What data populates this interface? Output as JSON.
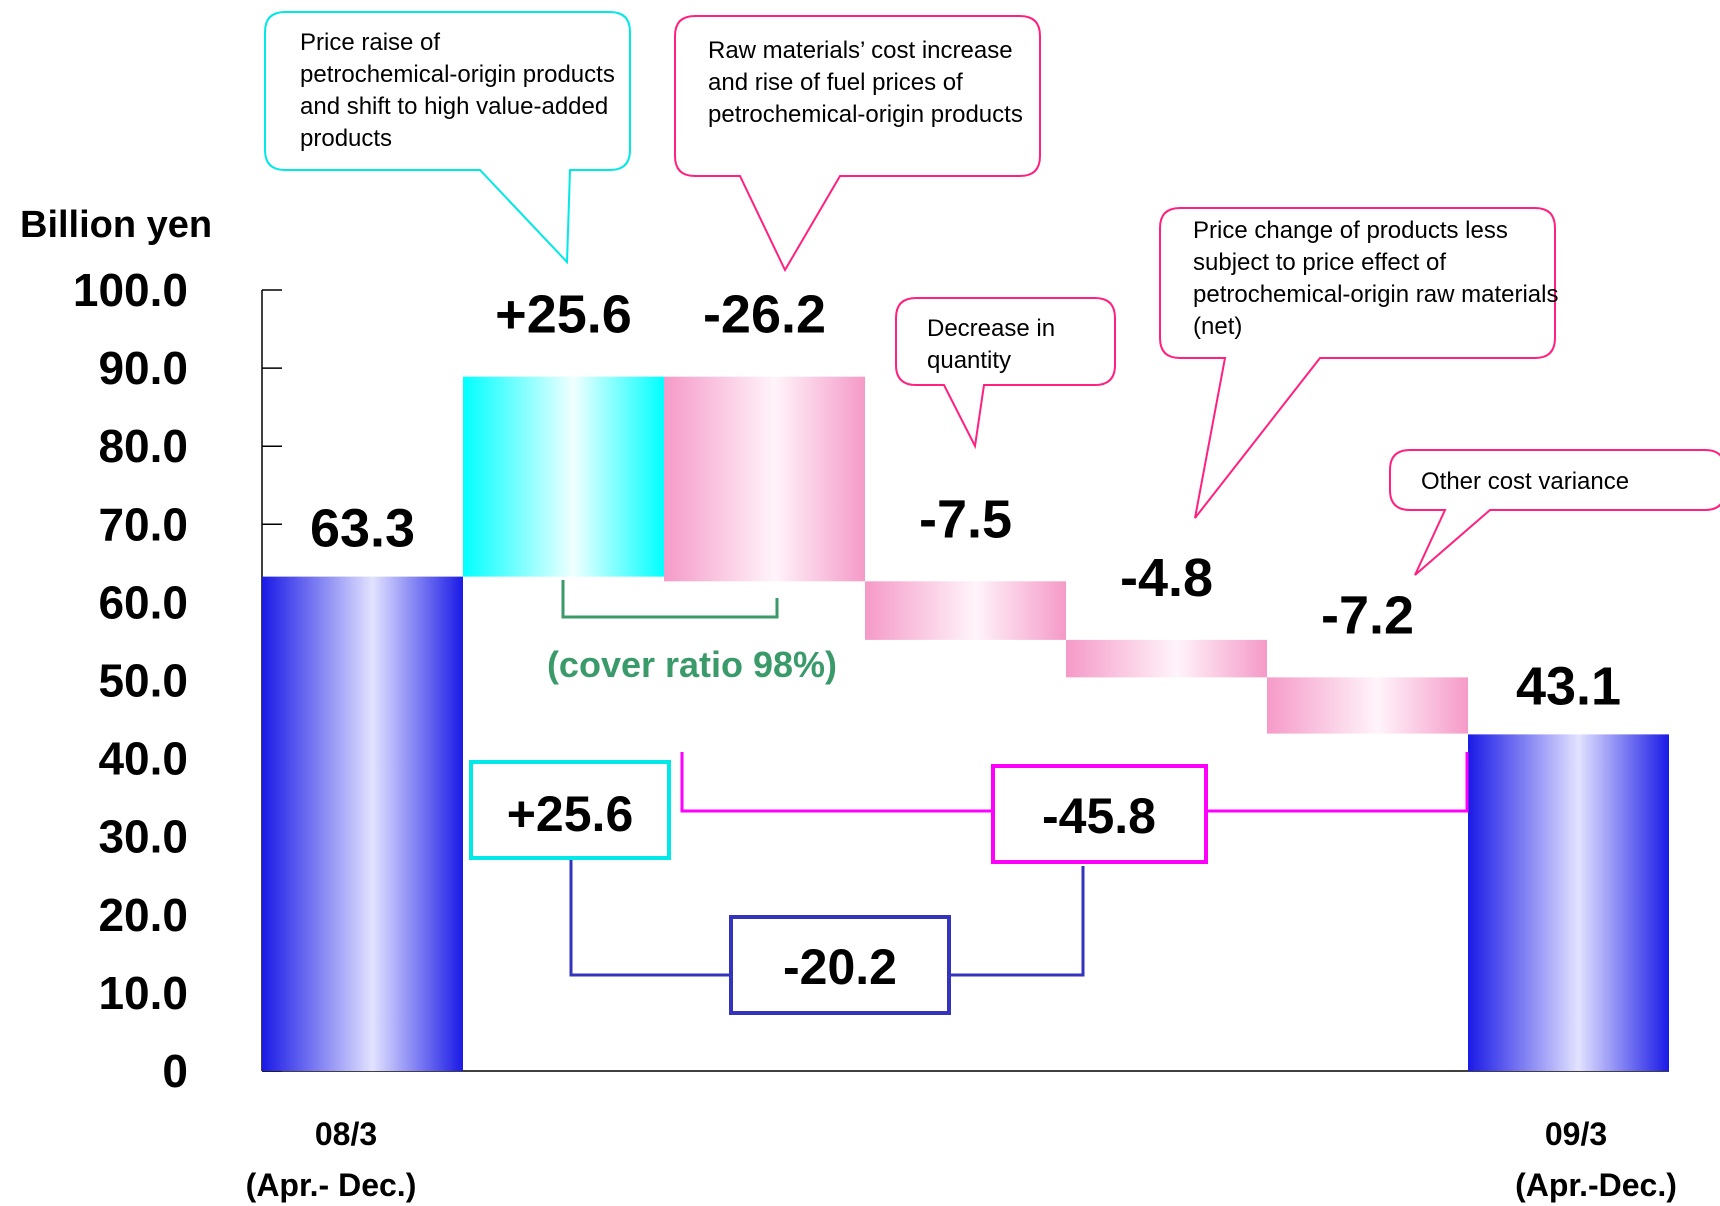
{
  "chart_data": {
    "type": "bar",
    "subtype": "waterfall",
    "ylabel": "Billion yen",
    "ylim": [
      0,
      100
    ],
    "y_ticks": [
      "100.0",
      "90.0",
      "80.0",
      "70.0",
      "60.0",
      "50.0",
      "40.0",
      "30.0",
      "20.0",
      "10.0",
      "0"
    ],
    "steps": [
      {
        "kind": "total",
        "value": 63.3,
        "label": "63.3",
        "category": [
          "08/3",
          "(Apr.- Dec.)"
        ],
        "color": "blue"
      },
      {
        "kind": "delta",
        "value": 25.6,
        "label": "+25.6",
        "color": "cyan",
        "callout": "Price raise of petrochemical-origin products and shift to high value-added products"
      },
      {
        "kind": "delta",
        "value": -26.2,
        "label": "-26.2",
        "color": "pink",
        "callout": "Raw materials’ cost increase and rise of fuel prices of petrochemical-origin products"
      },
      {
        "kind": "delta",
        "value": -7.5,
        "label": "-7.5",
        "color": "pink",
        "callout": "Decrease in quantity"
      },
      {
        "kind": "delta",
        "value": -4.8,
        "label": "-4.8",
        "color": "pink",
        "callout": "Price change of products less subject to price effect of petrochemical-origin raw materials (net)"
      },
      {
        "kind": "delta",
        "value": -7.2,
        "label": "-7.2",
        "color": "pink",
        "callout": "Other cost variance"
      },
      {
        "kind": "total",
        "value": 43.1,
        "label": "43.1",
        "category": [
          "09/3",
          "(Apr.-Dec.)"
        ],
        "color": "blue"
      }
    ],
    "annotations": {
      "cover_ratio": "(cover ratio 98%)",
      "positive_box": "+25.6",
      "negative_box": "-45.8",
      "net_box": "-20.2"
    }
  },
  "colors": {
    "blue_dark": "#1a1ae6",
    "blue_light": "#e0e0ff",
    "cyan": "#00ffff",
    "pink": "#f59ac8",
    "green": "#3a9a6a",
    "magenta": "#ff00ff",
    "navy": "#3333bb"
  }
}
